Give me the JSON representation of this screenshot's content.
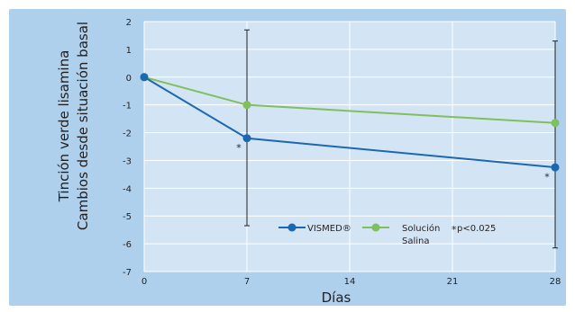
{
  "chart_data": {
    "type": "line",
    "xlabel": "Días",
    "ylabel": [
      "Tinción verde lisamina",
      "Cambios desde situación basal"
    ],
    "xlim": [
      0,
      28
    ],
    "ylim": [
      -7,
      2
    ],
    "x_ticks": [
      0,
      7,
      14,
      21,
      28
    ],
    "y_ticks": [
      2,
      1,
      0,
      -1,
      -2,
      -3,
      -4,
      -5,
      -6,
      -7
    ],
    "grid": true,
    "legend_position": "bottom-right",
    "series": [
      {
        "name": "VISMED®",
        "color": "#1b68b1",
        "x": [
          0,
          7,
          28
        ],
        "values": [
          0,
          -2.2,
          -3.25
        ]
      },
      {
        "name": "Solución Salina",
        "name_lines": [
          "Solución",
          "Salina"
        ],
        "color": "#7fbf5c",
        "x": [
          0,
          7,
          28
        ],
        "values": [
          0,
          -1.0,
          -1.65
        ]
      }
    ],
    "error_bars": [
      {
        "x": 7,
        "low": -5.35,
        "high": 1.7
      },
      {
        "x": 28,
        "low": -6.15,
        "high": 1.3
      }
    ],
    "annotations": [
      {
        "text": "*",
        "x": 7,
        "y": -2.5
      },
      {
        "text": "*",
        "x": 28,
        "y": -3.55
      }
    ],
    "footnote": {
      "star": "*",
      "text": "p<0.025"
    },
    "colors": {
      "plot_background": "#d3e5f5",
      "panel_background": "#aed0ec",
      "gridline": "#ffffff",
      "error_bar": "#231f20"
    }
  }
}
